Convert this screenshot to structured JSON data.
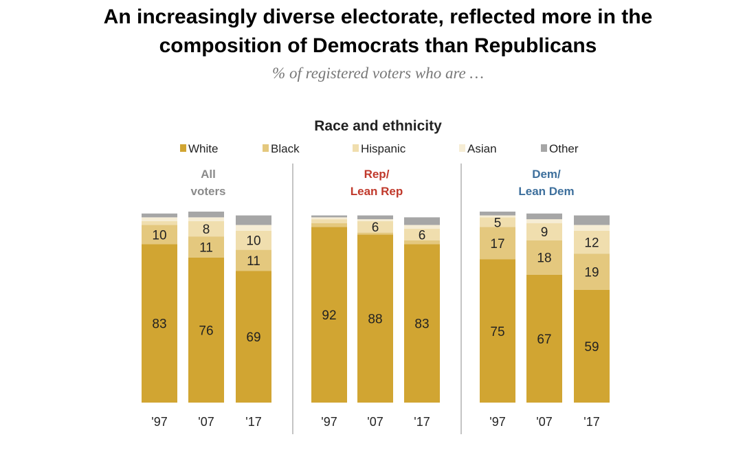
{
  "header": {
    "title_line1": "An increasingly diverse electorate, reflected more in the",
    "title_line2": "composition of Democrats than Republicans",
    "subtitle": "% of registered voters who are …"
  },
  "chart_data": {
    "type": "bar",
    "stacked": true,
    "title": "Race and ethnicity",
    "ylim": [
      0,
      100
    ],
    "grid": false,
    "legend_position": "top",
    "categories": [
      "'97",
      "'07",
      "'17"
    ],
    "series_styles": [
      {
        "name": "White",
        "color": "#d1a532"
      },
      {
        "name": "Black",
        "color": "#e4c87e"
      },
      {
        "name": "Hispanic",
        "color": "#f0deae"
      },
      {
        "name": "Asian",
        "color": "#f6edd5"
      },
      {
        "name": "Other",
        "color": "#a6a6a6"
      }
    ],
    "panels": [
      {
        "label": [
          "All",
          "voters"
        ],
        "label_color": "#8a8a8a",
        "values": {
          "White": [
            83,
            76,
            69
          ],
          "Black": [
            10,
            11,
            11
          ],
          "Hispanic": [
            2,
            8,
            10
          ],
          "Asian": [
            2,
            2,
            3
          ],
          "Other": [
            2,
            3,
            5
          ]
        },
        "labels": {
          "White": [
            "83",
            "76",
            "69"
          ],
          "Black": [
            "10",
            "11",
            "11"
          ],
          "Hispanic": [
            "",
            "8",
            "10"
          ],
          "Asian": [
            "",
            "",
            ""
          ],
          "Other": [
            "",
            "",
            ""
          ]
        }
      },
      {
        "label": [
          "Rep/",
          "Lean Rep"
        ],
        "label_color": "#c0392b",
        "values": {
          "White": [
            92,
            88,
            83
          ],
          "Black": [
            2,
            1,
            2
          ],
          "Hispanic": [
            2,
            6,
            6
          ],
          "Asian": [
            1,
            1,
            2
          ],
          "Other": [
            1,
            2,
            4
          ]
        },
        "labels": {
          "White": [
            "92",
            "88",
            "83"
          ],
          "Black": [
            "",
            "",
            ""
          ],
          "Hispanic": [
            "",
            "6",
            "6"
          ],
          "Asian": [
            "",
            "",
            ""
          ],
          "Other": [
            "",
            "",
            ""
          ]
        }
      },
      {
        "label": [
          "Dem/",
          "Lean Dem"
        ],
        "label_color": "#3d6f9c",
        "values": {
          "White": [
            75,
            67,
            59
          ],
          "Black": [
            17,
            18,
            19
          ],
          "Hispanic": [
            5,
            9,
            12
          ],
          "Asian": [
            1,
            2,
            3
          ],
          "Other": [
            2,
            3,
            5
          ]
        },
        "labels": {
          "White": [
            "75",
            "67",
            "59"
          ],
          "Black": [
            "17",
            "18",
            "19"
          ],
          "Hispanic": [
            "5",
            "9",
            "12"
          ],
          "Asian": [
            "",
            "",
            ""
          ],
          "Other": [
            "",
            "",
            ""
          ]
        }
      }
    ]
  }
}
